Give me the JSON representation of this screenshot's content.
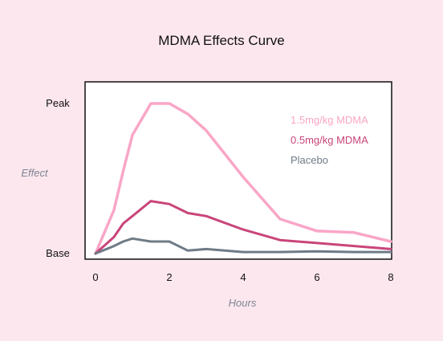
{
  "chart_data": {
    "type": "line",
    "title": "MDMA Effects Curve",
    "xlabel": "Hours",
    "ylabel": "Effect",
    "xlim": [
      0,
      8
    ],
    "ylim": [
      0,
      1
    ],
    "x_ticks": [
      0,
      2,
      4,
      6,
      8
    ],
    "y_ticks": [
      {
        "value": 0,
        "label": "Base"
      },
      {
        "value": 1,
        "label": "Peak"
      }
    ],
    "grid": false,
    "legend": "top-right",
    "series": [
      {
        "name": "1.5mg/kg MDMA",
        "color": "#f9a6c7",
        "x": [
          0,
          0.5,
          0.75,
          1,
          1.5,
          2,
          2.5,
          3,
          4,
          5,
          6,
          7,
          8
        ],
        "y": [
          0,
          0.29,
          0.55,
          0.79,
          1.0,
          1.0,
          0.93,
          0.82,
          0.51,
          0.23,
          0.15,
          0.14,
          0.08
        ]
      },
      {
        "name": "0.5mg/kg MDMA",
        "color": "#c9457a",
        "x": [
          0,
          0.5,
          0.75,
          1,
          1.5,
          2,
          2.5,
          3,
          4,
          5,
          6,
          7,
          8
        ],
        "y": [
          0,
          0.11,
          0.2,
          0.25,
          0.35,
          0.33,
          0.27,
          0.25,
          0.16,
          0.09,
          0.07,
          0.05,
          0.03
        ]
      },
      {
        "name": "Placebo",
        "color": "#6f7b87",
        "x": [
          0,
          0.5,
          0.75,
          1,
          1.5,
          2,
          2.5,
          3,
          4,
          5,
          6,
          7,
          8
        ],
        "y": [
          0,
          0.05,
          0.08,
          0.1,
          0.08,
          0.08,
          0.02,
          0.03,
          0.01,
          0.01,
          0.015,
          0.01,
          0.01
        ]
      }
    ]
  }
}
